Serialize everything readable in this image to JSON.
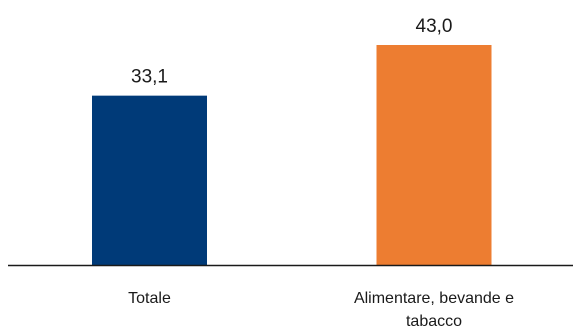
{
  "chart_data": {
    "type": "bar",
    "title": "",
    "xlabel": "",
    "ylabel": "",
    "ylim": [
      0,
      43
    ],
    "grid": false,
    "categories": [
      "Totale",
      "Alimentare, bevande e tabacco"
    ],
    "category_lines": [
      [
        "Totale"
      ],
      [
        "Alimentare, bevande e",
        "tabacco"
      ]
    ],
    "values": [
      33.1,
      43.0
    ],
    "value_labels": [
      "33,1",
      "43,0"
    ],
    "colors": [
      "#003a78",
      "#ed7d31"
    ],
    "axis_color": "#1a1a1a"
  }
}
